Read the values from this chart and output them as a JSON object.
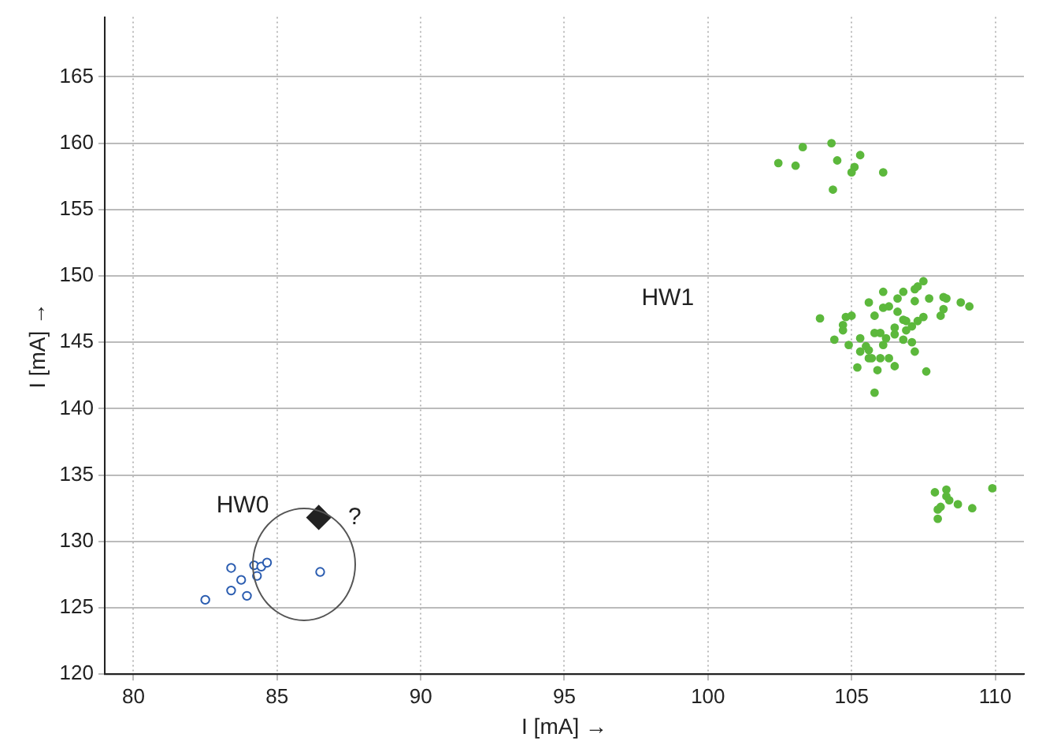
{
  "chart_data": {
    "type": "scatter",
    "xlabel": "I [mA] →",
    "ylabel": "I [mA] →",
    "xlim": [
      79,
      111
    ],
    "xticks": [
      80,
      85,
      90,
      95,
      100,
      105,
      110
    ],
    "ylim": [
      120,
      169.5
    ],
    "yticks": [
      120,
      125,
      130,
      135,
      140,
      145,
      150,
      155,
      160,
      165
    ],
    "grid": true,
    "legend": false,
    "series": [
      {
        "color": "#2a5cb0",
        "marker": "circle",
        "x": [
          82.5,
          83.4,
          83.4,
          83.75,
          83.95,
          84.2,
          84.3,
          84.45,
          84.65,
          86.5
        ],
        "values": [
          125.6,
          128.0,
          126.3,
          127.1,
          125.9,
          128.2,
          127.4,
          128.1,
          128.4,
          127.7
        ]
      },
      {
        "color": "#5cb83c",
        "marker": "circle",
        "x": [
          102.45,
          103.05,
          103.3,
          104.3,
          104.5,
          104.35,
          105.3,
          105.1,
          105.0,
          106.1,
          103.9,
          104.4,
          104.7,
          104.7,
          104.8,
          104.9,
          105.0,
          105.2,
          105.3,
          105.3,
          105.5,
          105.6,
          105.6,
          105.7,
          105.6,
          105.8,
          105.9,
          105.8,
          105.8,
          106.0,
          106.0,
          106.1,
          106.1,
          106.2,
          106.1,
          106.3,
          106.3,
          106.5,
          106.5,
          106.5,
          106.6,
          106.6,
          106.8,
          106.8,
          106.8,
          106.9,
          106.9,
          107.1,
          107.1,
          107.2,
          107.2,
          107.2,
          107.3,
          107.5,
          107.3,
          107.5,
          107.6,
          107.7,
          108.1,
          108.2,
          108.2,
          108.3,
          108.8,
          109.1,
          107.9,
          108.3,
          108.3,
          108.4,
          108.1,
          108.0,
          108.0,
          108.7,
          109.2,
          109.9
        ],
        "values": [
          158.5,
          158.3,
          159.7,
          160.0,
          158.7,
          156.5,
          159.1,
          158.2,
          157.8,
          157.8,
          146.8,
          145.2,
          146.3,
          145.9,
          146.9,
          144.8,
          147.0,
          143.1,
          145.3,
          144.3,
          144.7,
          144.4,
          143.8,
          143.8,
          148.0,
          147.0,
          142.9,
          141.2,
          145.7,
          145.7,
          143.8,
          148.8,
          144.8,
          145.3,
          147.6,
          147.7,
          143.8,
          143.2,
          145.6,
          146.1,
          147.3,
          148.3,
          146.7,
          148.8,
          145.2,
          145.9,
          146.6,
          146.2,
          145.0,
          144.3,
          148.1,
          149.0,
          149.2,
          149.6,
          146.6,
          146.9,
          142.8,
          148.3,
          147.0,
          147.5,
          148.4,
          148.3,
          148.0,
          147.7,
          133.7,
          133.9,
          133.4,
          133.1,
          132.6,
          132.4,
          131.7,
          132.8,
          132.5,
          134.0
        ]
      },
      {
        "color": "#222222",
        "marker": "diamond",
        "x": [
          86.45
        ],
        "values": [
          131.8
        ]
      }
    ],
    "annotations": [
      "HW0",
      "HW1",
      "?"
    ]
  }
}
